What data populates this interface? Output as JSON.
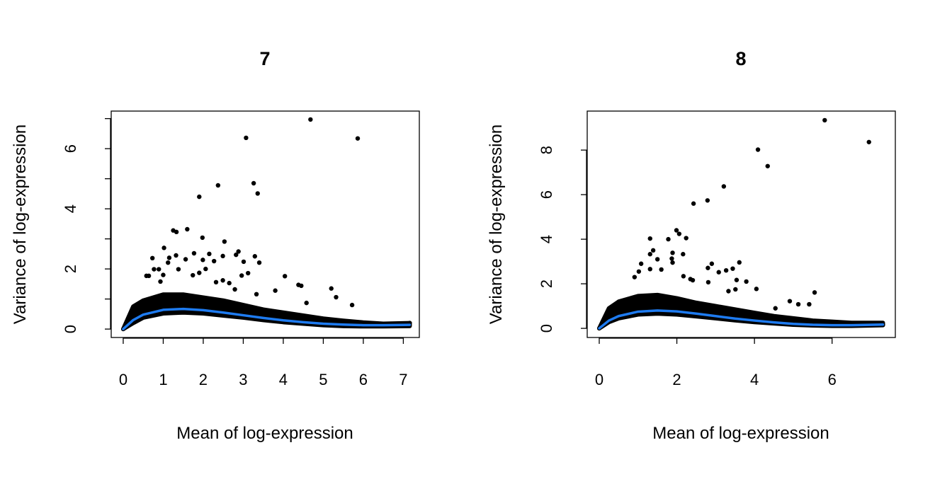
{
  "colors": {
    "points": "#000000",
    "trend": "#1E7BF0"
  },
  "chart_data": [
    {
      "type": "scatter",
      "title": "7",
      "xlabel": "Mean of log-expression",
      "ylabel": "Variance of log-expression",
      "xlim": [
        -0.3,
        7.4
      ],
      "ylim": [
        -0.28,
        7.25
      ],
      "xticks": [
        0,
        1,
        2,
        3,
        4,
        5,
        6,
        7
      ],
      "xtick_labels": [
        "0",
        "1",
        "2",
        "3",
        "4",
        "5",
        "6",
        "7"
      ],
      "yticks": [
        0,
        1,
        2,
        3,
        4,
        5,
        6,
        7
      ],
      "ytick_labels": [
        "0",
        "",
        "2",
        "",
        "4",
        "",
        "6",
        ""
      ],
      "grid": false,
      "points": [
        [
          4.68,
          6.97
        ],
        [
          3.07,
          6.36
        ],
        [
          5.86,
          6.34
        ],
        [
          2.37,
          4.78
        ],
        [
          1.9,
          4.4
        ],
        [
          3.26,
          4.85
        ],
        [
          3.36,
          4.51
        ],
        [
          1.25,
          3.28
        ],
        [
          1.33,
          3.23
        ],
        [
          1.6,
          3.32
        ],
        [
          1.98,
          3.04
        ],
        [
          2.53,
          2.91
        ],
        [
          1.02,
          2.7
        ],
        [
          0.73,
          2.36
        ],
        [
          2.88,
          2.58
        ],
        [
          2.82,
          2.47
        ],
        [
          3.01,
          2.24
        ],
        [
          3.29,
          2.42
        ],
        [
          3.4,
          2.21
        ],
        [
          2.15,
          2.5
        ],
        [
          2.49,
          2.43
        ],
        [
          2.27,
          2.26
        ],
        [
          1.99,
          2.3
        ],
        [
          1.77,
          2.52
        ],
        [
          1.56,
          2.32
        ],
        [
          1.32,
          2.45
        ],
        [
          1.15,
          2.37
        ],
        [
          1.12,
          2.21
        ],
        [
          0.89,
          1.99
        ],
        [
          0.77,
          1.99
        ],
        [
          1.0,
          1.8
        ],
        [
          0.58,
          1.77
        ],
        [
          0.64,
          1.77
        ],
        [
          1.38,
          1.99
        ],
        [
          2.06,
          2.0
        ],
        [
          2.96,
          1.78
        ],
        [
          3.12,
          1.86
        ],
        [
          4.04,
          1.76
        ],
        [
          4.38,
          1.47
        ],
        [
          4.45,
          1.44
        ],
        [
          3.8,
          1.28
        ],
        [
          5.2,
          1.35
        ],
        [
          5.32,
          1.06
        ],
        [
          5.72,
          0.8
        ],
        [
          4.58,
          0.87
        ],
        [
          2.32,
          1.56
        ],
        [
          2.49,
          1.62
        ],
        [
          2.65,
          1.53
        ],
        [
          2.79,
          1.32
        ],
        [
          3.33,
          1.16
        ],
        [
          1.9,
          1.87
        ],
        [
          1.74,
          1.79
        ],
        [
          0.93,
          1.58
        ],
        [
          7.16,
          0.2
        ]
      ],
      "dense_band": {
        "x": [
          0,
          0.25,
          0.5,
          1,
          1.5,
          2,
          2.5,
          3,
          3.5,
          4,
          4.5,
          5,
          5.5,
          6,
          6.5,
          7.16
        ],
        "upper": [
          0,
          0.75,
          0.95,
          1.15,
          1.15,
          1.05,
          0.95,
          0.8,
          0.65,
          0.55,
          0.45,
          0.35,
          0.28,
          0.22,
          0.18,
          0.2
        ],
        "lower": [
          0,
          0.2,
          0.38,
          0.52,
          0.55,
          0.52,
          0.45,
          0.38,
          0.3,
          0.23,
          0.18,
          0.13,
          0.1,
          0.09,
          0.09,
          0.1
        ]
      },
      "trend": {
        "x": [
          0,
          0.25,
          0.5,
          1,
          1.5,
          2,
          2.5,
          3,
          3.5,
          4,
          4.5,
          5,
          5.5,
          6,
          6.5,
          7.16
        ],
        "y": [
          0,
          0.3,
          0.48,
          0.64,
          0.67,
          0.63,
          0.55,
          0.46,
          0.37,
          0.29,
          0.23,
          0.18,
          0.15,
          0.13,
          0.13,
          0.14
        ]
      }
    },
    {
      "type": "scatter",
      "title": "8",
      "xlabel": "Mean of log-expression",
      "ylabel": "Variance of log-expression",
      "xlim": [
        -0.31,
        7.63
      ],
      "ylim": [
        -0.41,
        9.75
      ],
      "xticks": [
        0,
        2,
        4,
        6
      ],
      "xtick_labels": [
        "0",
        "2",
        "4",
        "6"
      ],
      "yticks": [
        0,
        2,
        4,
        6,
        8
      ],
      "ytick_labels": [
        "0",
        "2",
        "4",
        "6",
        "8"
      ],
      "grid": false,
      "points": [
        [
          5.81,
          9.34
        ],
        [
          6.95,
          8.36
        ],
        [
          4.09,
          8.02
        ],
        [
          4.34,
          7.28
        ],
        [
          3.21,
          6.37
        ],
        [
          2.79,
          5.74
        ],
        [
          2.43,
          5.6
        ],
        [
          1.99,
          4.4
        ],
        [
          2.06,
          4.24
        ],
        [
          2.24,
          4.05
        ],
        [
          1.78,
          4.0
        ],
        [
          1.31,
          4.03
        ],
        [
          1.39,
          3.5
        ],
        [
          1.31,
          3.33
        ],
        [
          1.89,
          3.39
        ],
        [
          2.16,
          3.33
        ],
        [
          1.5,
          3.1
        ],
        [
          1.08,
          2.9
        ],
        [
          1.87,
          3.13
        ],
        [
          1.89,
          2.95
        ],
        [
          1.02,
          2.55
        ],
        [
          1.31,
          2.66
        ],
        [
          1.6,
          2.64
        ],
        [
          2.9,
          2.9
        ],
        [
          2.8,
          2.71
        ],
        [
          3.08,
          2.52
        ],
        [
          3.27,
          2.6
        ],
        [
          3.44,
          2.68
        ],
        [
          3.61,
          2.96
        ],
        [
          2.17,
          2.34
        ],
        [
          2.35,
          2.21
        ],
        [
          2.41,
          2.16
        ],
        [
          2.81,
          2.07
        ],
        [
          3.54,
          2.17
        ],
        [
          3.79,
          2.1
        ],
        [
          4.05,
          1.77
        ],
        [
          3.33,
          1.67
        ],
        [
          3.51,
          1.75
        ],
        [
          5.55,
          1.61
        ],
        [
          4.91,
          1.22
        ],
        [
          5.13,
          1.08
        ],
        [
          5.41,
          1.08
        ],
        [
          4.54,
          0.9
        ],
        [
          0.91,
          2.3
        ],
        [
          7.31,
          0.17
        ],
        [
          7.09,
          0.22
        ]
      ],
      "dense_band": {
        "x": [
          0,
          0.25,
          0.5,
          1,
          1.5,
          2,
          2.5,
          3,
          3.5,
          4,
          4.5,
          5,
          5.5,
          6,
          6.5,
          7.31
        ],
        "upper": [
          0,
          0.9,
          1.2,
          1.45,
          1.5,
          1.35,
          1.15,
          1.0,
          0.85,
          0.7,
          0.55,
          0.45,
          0.35,
          0.3,
          0.25,
          0.25
        ],
        "lower": [
          0,
          0.28,
          0.45,
          0.62,
          0.66,
          0.62,
          0.54,
          0.45,
          0.36,
          0.28,
          0.22,
          0.16,
          0.13,
          0.11,
          0.11,
          0.14
        ]
      },
      "trend": {
        "x": [
          0,
          0.25,
          0.5,
          1,
          1.5,
          2,
          2.5,
          3,
          3.5,
          4,
          4.5,
          5,
          5.5,
          6,
          6.5,
          7.31
        ],
        "y": [
          0,
          0.35,
          0.55,
          0.75,
          0.8,
          0.76,
          0.66,
          0.55,
          0.44,
          0.35,
          0.27,
          0.2,
          0.16,
          0.14,
          0.14,
          0.17
        ]
      }
    }
  ]
}
